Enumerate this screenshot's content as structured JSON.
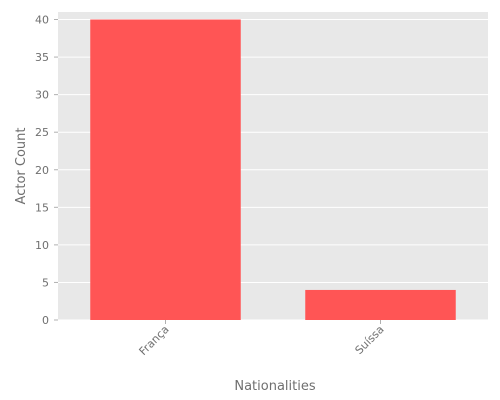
{
  "chart_data": {
    "type": "bar",
    "categories": [
      "França",
      "Suíssa"
    ],
    "values": [
      40,
      4
    ],
    "xlabel": "Nationalities",
    "ylabel": "Actor Count",
    "ylim": [
      0,
      41
    ],
    "yticks": [
      0,
      5,
      10,
      15,
      20,
      25,
      30,
      35,
      40
    ],
    "grid": true,
    "legend": "none",
    "colors": {
      "bar": "#ff5555",
      "panel": "#e8e8e8",
      "grid": "#ffffff",
      "text": "#6f6f6f"
    }
  }
}
